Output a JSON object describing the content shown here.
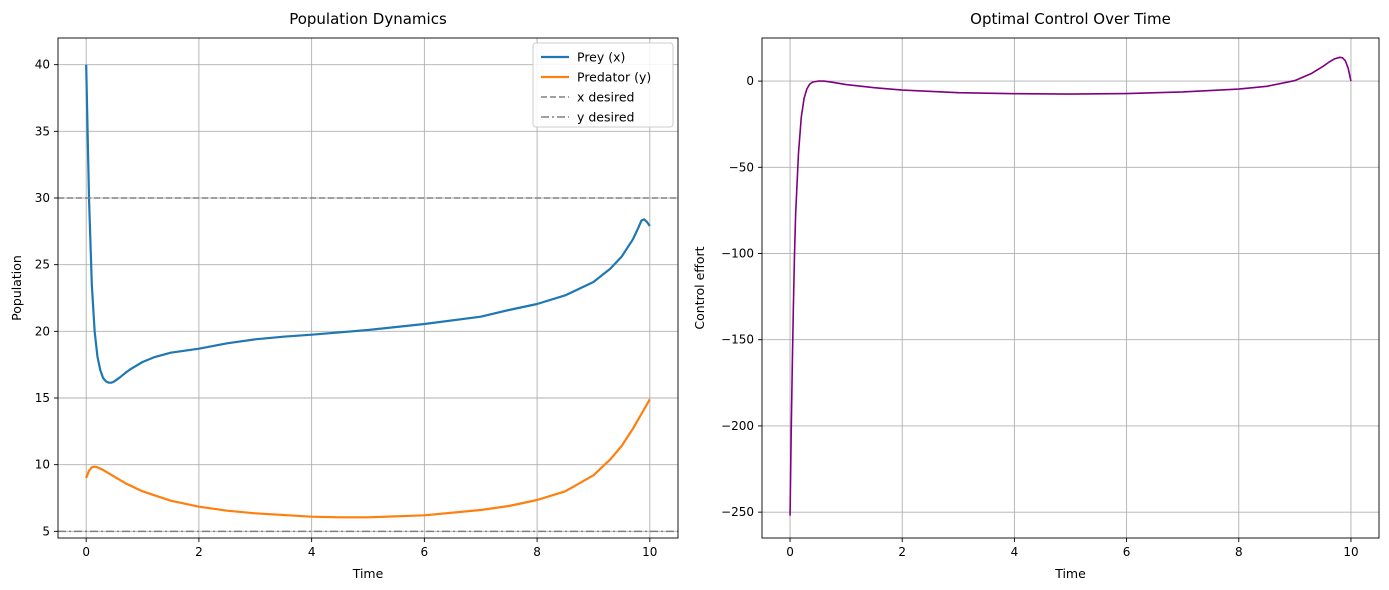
{
  "chart_data": [
    {
      "type": "line",
      "title": "Population Dynamics",
      "xlabel": "Time",
      "ylabel": "Population",
      "xlim": [
        -0.5,
        10.5
      ],
      "ylim": [
        4.5,
        42
      ],
      "xticks": [
        0,
        2,
        4,
        6,
        8,
        10
      ],
      "yticks": [
        5,
        10,
        15,
        20,
        25,
        30,
        35,
        40
      ],
      "grid": true,
      "legend_position": "top-right",
      "series": [
        {
          "name": "Prey (x)",
          "color": "#1f77b4",
          "style": "solid",
          "x": [
            0,
            0.05,
            0.1,
            0.15,
            0.2,
            0.25,
            0.3,
            0.35,
            0.4,
            0.45,
            0.5,
            0.6,
            0.7,
            0.8,
            1.0,
            1.2,
            1.5,
            2.0,
            2.5,
            3.0,
            3.5,
            4.0,
            5.0,
            6.0,
            7.0,
            7.5,
            8.0,
            8.5,
            9.0,
            9.3,
            9.5,
            9.7,
            9.8,
            9.85,
            9.9,
            9.95,
            10.0
          ],
          "y": [
            40,
            30,
            23.5,
            20,
            18.1,
            17.1,
            16.5,
            16.25,
            16.15,
            16.15,
            16.25,
            16.55,
            16.9,
            17.2,
            17.7,
            18.05,
            18.4,
            18.7,
            19.1,
            19.4,
            19.6,
            19.75,
            20.1,
            20.55,
            21.1,
            21.6,
            22.05,
            22.7,
            23.7,
            24.7,
            25.6,
            26.9,
            27.8,
            28.3,
            28.4,
            28.2,
            27.9
          ]
        },
        {
          "name": "Predator (y)",
          "color": "#ff7f0e",
          "style": "solid",
          "x": [
            0,
            0.05,
            0.1,
            0.15,
            0.2,
            0.3,
            0.4,
            0.5,
            0.7,
            1.0,
            1.5,
            2.0,
            2.5,
            3.0,
            4.0,
            4.5,
            5.0,
            6.0,
            7.0,
            7.5,
            8.0,
            8.5,
            9.0,
            9.3,
            9.5,
            9.7,
            9.85,
            10.0
          ],
          "y": [
            9.0,
            9.55,
            9.8,
            9.85,
            9.8,
            9.6,
            9.35,
            9.1,
            8.6,
            8.0,
            7.3,
            6.85,
            6.55,
            6.35,
            6.1,
            6.05,
            6.05,
            6.2,
            6.6,
            6.9,
            7.35,
            8.0,
            9.2,
            10.4,
            11.4,
            12.7,
            13.8,
            14.9
          ]
        },
        {
          "name": "x desired",
          "color": "#808080",
          "style": "dashed",
          "x": [
            -0.5,
            10.5
          ],
          "y": [
            30,
            30
          ]
        },
        {
          "name": "y desired",
          "color": "#808080",
          "style": "dashdot",
          "x": [
            -0.5,
            10.5
          ],
          "y": [
            5,
            5
          ]
        }
      ]
    },
    {
      "type": "line",
      "title": "Optimal Control Over Time",
      "xlabel": "Time",
      "ylabel": "Control effort",
      "xlim": [
        -0.5,
        10.5
      ],
      "ylim": [
        -265,
        25
      ],
      "xticks": [
        0,
        2,
        4,
        6,
        8,
        10
      ],
      "yticks": [
        0,
        -50,
        -100,
        -150,
        -200,
        -250
      ],
      "ytick_labels": [
        "0",
        "−50",
        "−100",
        "−150",
        "−200",
        "−250"
      ],
      "grid": true,
      "series": [
        {
          "color": "#800080",
          "style": "solid",
          "x": [
            0,
            0.02,
            0.04,
            0.06,
            0.08,
            0.1,
            0.15,
            0.2,
            0.25,
            0.3,
            0.35,
            0.4,
            0.5,
            0.6,
            0.7,
            0.8,
            1.0,
            1.5,
            2.0,
            3.0,
            4.0,
            5.0,
            6.0,
            7.0,
            8.0,
            8.5,
            9.0,
            9.3,
            9.5,
            9.6,
            9.7,
            9.8,
            9.85,
            9.9,
            9.95,
            10.0
          ],
          "y": [
            -252,
            -205,
            -165,
            -130,
            -100,
            -77,
            -42,
            -21,
            -10,
            -4.5,
            -1.8,
            -0.6,
            0,
            0,
            -0.4,
            -0.9,
            -2.0,
            -3.8,
            -5.2,
            -6.7,
            -7.3,
            -7.5,
            -7.2,
            -6.3,
            -4.6,
            -3.0,
            0.3,
            4.5,
            8.5,
            10.8,
            12.8,
            13.8,
            13.5,
            11.8,
            7.5,
            0
          ]
        }
      ]
    }
  ]
}
